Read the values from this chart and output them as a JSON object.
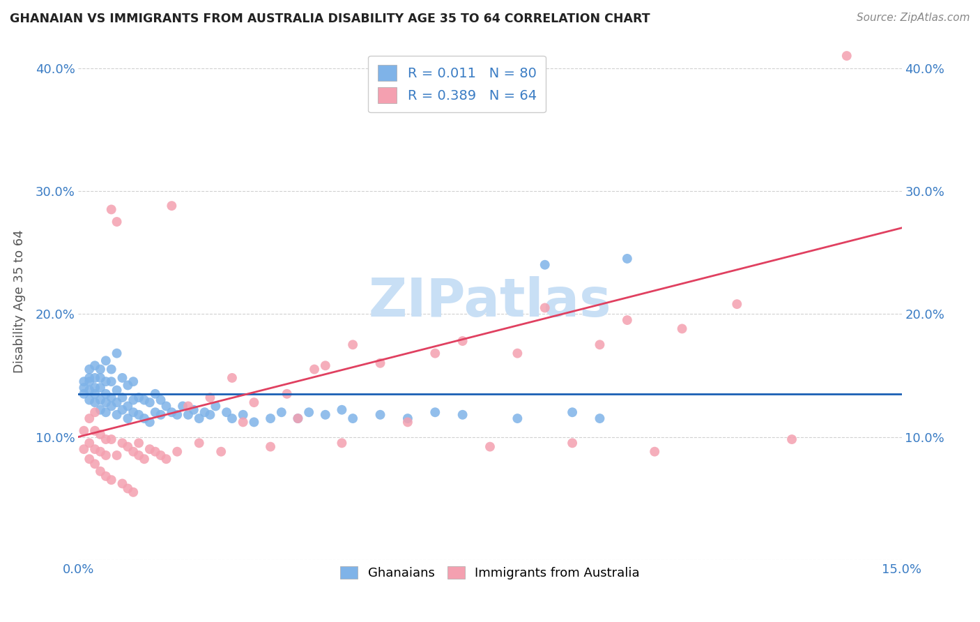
{
  "title": "GHANAIAN VS IMMIGRANTS FROM AUSTRALIA DISABILITY AGE 35 TO 64 CORRELATION CHART",
  "source": "Source: ZipAtlas.com",
  "ylabel": "Disability Age 35 to 64",
  "xlim": [
    0.0,
    0.15
  ],
  "ylim": [
    0.0,
    0.42
  ],
  "xticks": [
    0.0,
    0.05,
    0.1,
    0.15
  ],
  "xticklabels": [
    "0.0%",
    "",
    "",
    "15.0%"
  ],
  "yticks": [
    0.0,
    0.1,
    0.2,
    0.3,
    0.4
  ],
  "yticklabels": [
    "",
    "10.0%",
    "20.0%",
    "30.0%",
    "40.0%"
  ],
  "ghanaians_color": "#7fb3e8",
  "australia_color": "#f4a0b0",
  "trend_ghana_color": "#1a5fb4",
  "trend_australia_color": "#e04060",
  "R_ghana": 0.011,
  "N_ghana": 80,
  "R_australia": 0.389,
  "N_australia": 64,
  "watermark": "ZIPatlas",
  "watermark_color": "#c8dff5",
  "ghana_x": [
    0.001,
    0.001,
    0.001,
    0.002,
    0.002,
    0.002,
    0.002,
    0.002,
    0.003,
    0.003,
    0.003,
    0.003,
    0.003,
    0.004,
    0.004,
    0.004,
    0.004,
    0.004,
    0.005,
    0.005,
    0.005,
    0.005,
    0.005,
    0.006,
    0.006,
    0.006,
    0.006,
    0.007,
    0.007,
    0.007,
    0.007,
    0.008,
    0.008,
    0.008,
    0.009,
    0.009,
    0.009,
    0.01,
    0.01,
    0.01,
    0.011,
    0.011,
    0.012,
    0.012,
    0.013,
    0.013,
    0.014,
    0.014,
    0.015,
    0.015,
    0.016,
    0.017,
    0.018,
    0.019,
    0.02,
    0.021,
    0.022,
    0.023,
    0.024,
    0.025,
    0.027,
    0.028,
    0.03,
    0.032,
    0.035,
    0.037,
    0.04,
    0.042,
    0.045,
    0.048,
    0.05,
    0.055,
    0.06,
    0.065,
    0.07,
    0.08,
    0.085,
    0.09,
    0.095,
    0.1
  ],
  "ghana_y": [
    0.135,
    0.14,
    0.145,
    0.13,
    0.138,
    0.145,
    0.148,
    0.155,
    0.128,
    0.135,
    0.14,
    0.148,
    0.158,
    0.122,
    0.13,
    0.14,
    0.148,
    0.155,
    0.12,
    0.128,
    0.135,
    0.145,
    0.162,
    0.125,
    0.132,
    0.145,
    0.155,
    0.118,
    0.128,
    0.138,
    0.168,
    0.122,
    0.132,
    0.148,
    0.115,
    0.125,
    0.142,
    0.12,
    0.13,
    0.145,
    0.118,
    0.132,
    0.115,
    0.13,
    0.112,
    0.128,
    0.12,
    0.135,
    0.118,
    0.13,
    0.125,
    0.12,
    0.118,
    0.125,
    0.118,
    0.122,
    0.115,
    0.12,
    0.118,
    0.125,
    0.12,
    0.115,
    0.118,
    0.112,
    0.115,
    0.12,
    0.115,
    0.12,
    0.118,
    0.122,
    0.115,
    0.118,
    0.115,
    0.12,
    0.118,
    0.115,
    0.24,
    0.12,
    0.115,
    0.245
  ],
  "australia_x": [
    0.001,
    0.001,
    0.002,
    0.002,
    0.002,
    0.003,
    0.003,
    0.003,
    0.003,
    0.004,
    0.004,
    0.004,
    0.005,
    0.005,
    0.005,
    0.006,
    0.006,
    0.006,
    0.007,
    0.007,
    0.008,
    0.008,
    0.009,
    0.009,
    0.01,
    0.01,
    0.011,
    0.011,
    0.012,
    0.013,
    0.014,
    0.015,
    0.016,
    0.017,
    0.018,
    0.02,
    0.022,
    0.024,
    0.026,
    0.028,
    0.03,
    0.032,
    0.035,
    0.038,
    0.04,
    0.043,
    0.045,
    0.048,
    0.05,
    0.055,
    0.06,
    0.065,
    0.07,
    0.075,
    0.08,
    0.085,
    0.09,
    0.095,
    0.1,
    0.105,
    0.11,
    0.12,
    0.13,
    0.14
  ],
  "australia_y": [
    0.09,
    0.105,
    0.082,
    0.095,
    0.115,
    0.078,
    0.09,
    0.105,
    0.12,
    0.072,
    0.088,
    0.102,
    0.068,
    0.085,
    0.098,
    0.285,
    0.065,
    0.098,
    0.275,
    0.085,
    0.062,
    0.095,
    0.058,
    0.092,
    0.055,
    0.088,
    0.085,
    0.095,
    0.082,
    0.09,
    0.088,
    0.085,
    0.082,
    0.288,
    0.088,
    0.125,
    0.095,
    0.132,
    0.088,
    0.148,
    0.112,
    0.128,
    0.092,
    0.135,
    0.115,
    0.155,
    0.158,
    0.095,
    0.175,
    0.16,
    0.112,
    0.168,
    0.178,
    0.092,
    0.168,
    0.205,
    0.095,
    0.175,
    0.195,
    0.088,
    0.188,
    0.208,
    0.098,
    0.41
  ]
}
